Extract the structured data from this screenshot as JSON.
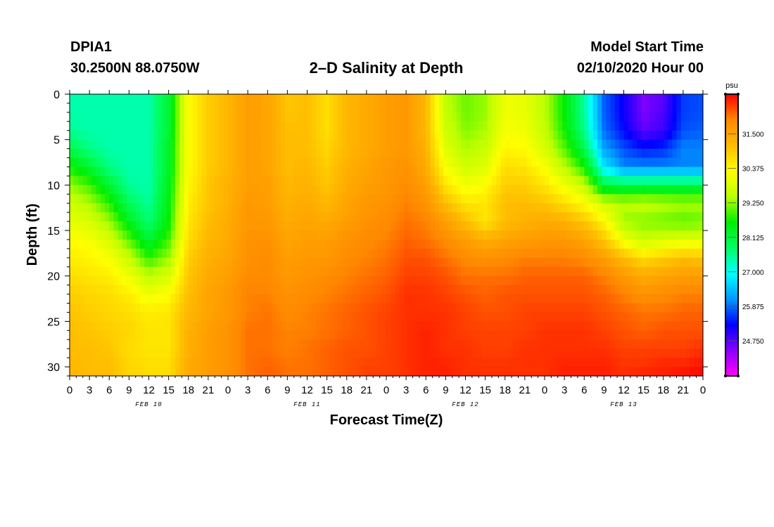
{
  "header": {
    "station": "DPIA1",
    "coords": "30.2500N 88.0750W",
    "title": "2–D Salinity at Depth",
    "model_start_label": "Model Start Time",
    "model_start_date": "02/10/2020 Hour 00"
  },
  "chart_data": {
    "type": "heatmap",
    "title": "2–D Salinity at Depth",
    "xlabel": "Forecast Time(Z)",
    "ylabel": "Depth (ft)",
    "x_ticks": [
      "0",
      "3",
      "6",
      "9",
      "12",
      "15",
      "18",
      "21",
      "0",
      "3",
      "6",
      "9",
      "12",
      "15",
      "18",
      "21",
      "0",
      "3",
      "6",
      "9",
      "12",
      "15",
      "18",
      "21",
      "0",
      "3",
      "6",
      "9",
      "12",
      "15",
      "18",
      "21",
      "0"
    ],
    "x_hours": [
      0,
      3,
      6,
      9,
      12,
      15,
      18,
      21,
      24,
      27,
      30,
      33,
      36,
      39,
      42,
      45,
      48,
      51,
      54,
      57,
      60,
      63,
      66,
      69,
      72,
      75,
      78,
      81,
      84,
      87,
      90,
      93,
      96
    ],
    "xlim": [
      0,
      96
    ],
    "day_labels": [
      {
        "label": "FEB 10",
        "hour": 12
      },
      {
        "label": "FEB 11",
        "hour": 36
      },
      {
        "label": "FEB 12",
        "hour": 60
      },
      {
        "label": "FEB 13",
        "hour": 84
      }
    ],
    "y_ticks": [
      "0",
      "5",
      "10",
      "15",
      "20",
      "25",
      "30"
    ],
    "y_values": [
      0,
      5,
      10,
      15,
      20,
      25,
      30
    ],
    "ylim": [
      0,
      31
    ],
    "y_inverted": true,
    "colorbar": {
      "unit": "psu",
      "ticks": [
        "24.750",
        "25.875",
        "27.000",
        "28.125",
        "29.250",
        "30.375",
        "31.500"
      ],
      "tick_values": [
        24.75,
        25.875,
        27.0,
        28.125,
        29.25,
        30.375,
        31.5
      ],
      "range": [
        23.6,
        32.8
      ],
      "colors": [
        "#ff00ff",
        "#8800ff",
        "#0000ff",
        "#0099ff",
        "#00ffff",
        "#00ff66",
        "#00ee00",
        "#bbff00",
        "#ffff00",
        "#ffbb00",
        "#ff8800",
        "#ff0000"
      ]
    },
    "x_hours_grid": [
      0,
      3,
      6,
      9,
      12,
      15,
      18,
      21,
      24,
      27,
      30,
      33,
      36,
      39,
      42,
      45,
      48,
      51,
      54,
      57,
      60,
      63,
      66,
      69,
      72,
      75,
      78,
      81,
      84,
      87,
      90,
      93,
      96
    ],
    "depth_grid": [
      0,
      2,
      4,
      6,
      8,
      10,
      12,
      14,
      16,
      18,
      20,
      22,
      24,
      26,
      28,
      30,
      31
    ],
    "values": [
      [
        27.4,
        27.4,
        27.4,
        27.4,
        27.4,
        28.2,
        30.3,
        30.9,
        31.2,
        31.6,
        31.5,
        31.0,
        31.1,
        30.7,
        31.2,
        31.4,
        31.6,
        31.7,
        31.2,
        29.5,
        29.1,
        29.3,
        30.1,
        30.0,
        29.5,
        28.6,
        27.5,
        25.8,
        25.2,
        24.5,
        24.7,
        25.6,
        25.7
      ],
      [
        27.4,
        27.4,
        27.4,
        27.4,
        27.4,
        28.2,
        30.3,
        30.9,
        31.2,
        31.6,
        31.5,
        31.0,
        31.1,
        30.7,
        31.2,
        31.4,
        31.6,
        31.7,
        31.2,
        29.6,
        29.1,
        29.3,
        30.1,
        30.0,
        29.5,
        28.6,
        27.5,
        25.8,
        25.2,
        24.5,
        24.8,
        25.6,
        25.7
      ],
      [
        27.5,
        27.4,
        27.4,
        27.4,
        27.4,
        28.2,
        30.3,
        30.9,
        31.2,
        31.6,
        31.5,
        31.1,
        31.1,
        30.7,
        31.2,
        31.4,
        31.6,
        31.7,
        31.2,
        29.7,
        29.2,
        29.4,
        30.2,
        30.1,
        29.6,
        28.7,
        27.6,
        25.9,
        25.3,
        24.7,
        24.9,
        25.7,
        25.8
      ],
      [
        28.0,
        27.6,
        27.4,
        27.4,
        27.4,
        28.3,
        30.3,
        30.9,
        31.2,
        31.6,
        31.5,
        31.1,
        31.1,
        30.8,
        31.2,
        31.4,
        31.6,
        31.7,
        31.3,
        29.9,
        29.4,
        29.6,
        30.4,
        30.3,
        29.8,
        29.0,
        28.0,
        26.2,
        25.7,
        25.4,
        25.5,
        26.0,
        26.0
      ],
      [
        28.7,
        28.2,
        27.6,
        27.4,
        27.4,
        28.3,
        30.3,
        30.9,
        31.2,
        31.6,
        31.5,
        31.1,
        31.2,
        30.9,
        31.3,
        31.5,
        31.7,
        31.8,
        31.4,
        30.2,
        29.7,
        29.9,
        30.7,
        30.6,
        30.2,
        29.5,
        28.7,
        26.8,
        26.0,
        26.0,
        26.0,
        26.0,
        26.0
      ],
      [
        29.3,
        28.9,
        28.2,
        27.5,
        27.4,
        28.4,
        30.4,
        31.0,
        31.3,
        31.6,
        31.6,
        31.2,
        31.3,
        31.0,
        31.4,
        31.6,
        31.7,
        31.9,
        31.6,
        30.6,
        30.1,
        30.3,
        30.9,
        30.9,
        30.6,
        30.1,
        29.6,
        28.1,
        28.0,
        28.0,
        28.0,
        28.0,
        28.0
      ],
      [
        29.7,
        29.4,
        28.8,
        27.9,
        27.5,
        28.5,
        30.5,
        31.0,
        31.3,
        31.7,
        31.6,
        31.3,
        31.4,
        31.2,
        31.5,
        31.7,
        31.8,
        32.0,
        31.8,
        31.1,
        30.6,
        30.6,
        31.1,
        31.1,
        31.0,
        30.7,
        30.3,
        29.7,
        29.5,
        29.6,
        29.5,
        29.4,
        29.4
      ],
      [
        30.0,
        29.8,
        29.3,
        28.4,
        27.7,
        28.6,
        30.6,
        31.1,
        31.4,
        31.7,
        31.7,
        31.4,
        31.5,
        31.4,
        31.6,
        31.8,
        31.9,
        32.1,
        32.0,
        31.6,
        31.1,
        30.6,
        31.1,
        31.3,
        31.4,
        31.3,
        31.0,
        30.4,
        29.3,
        29.2,
        29.1,
        29.0,
        29.1
      ],
      [
        30.3,
        30.2,
        29.8,
        29.0,
        28.2,
        28.9,
        30.7,
        31.2,
        31.4,
        31.8,
        31.8,
        31.5,
        31.6,
        31.6,
        31.8,
        31.9,
        32.0,
        32.2,
        32.1,
        31.9,
        31.6,
        31.3,
        31.5,
        31.6,
        31.7,
        31.7,
        31.5,
        31.0,
        30.1,
        29.6,
        29.8,
        29.9,
        29.9
      ],
      [
        30.5,
        30.4,
        30.2,
        29.6,
        28.8,
        29.3,
        30.9,
        31.3,
        31.5,
        31.8,
        31.9,
        31.6,
        31.7,
        31.7,
        31.9,
        32.0,
        32.1,
        32.3,
        32.3,
        32.1,
        31.9,
        31.8,
        31.9,
        32.0,
        32.0,
        32.0,
        31.9,
        31.6,
        31.1,
        30.7,
        30.9,
        31.1,
        31.0
      ],
      [
        30.7,
        30.6,
        30.5,
        30.1,
        29.5,
        29.8,
        31.0,
        31.4,
        31.6,
        31.9,
        31.9,
        31.7,
        31.8,
        31.9,
        32.0,
        32.1,
        32.2,
        32.4,
        32.4,
        32.3,
        32.1,
        32.1,
        32.1,
        32.2,
        32.2,
        32.2,
        32.2,
        32.0,
        31.7,
        31.4,
        31.5,
        31.6,
        31.6
      ],
      [
        30.9,
        30.8,
        30.7,
        30.5,
        30.1,
        30.3,
        31.1,
        31.5,
        31.7,
        32.0,
        32.0,
        31.8,
        31.9,
        32.0,
        32.1,
        32.2,
        32.3,
        32.5,
        32.5,
        32.4,
        32.3,
        32.2,
        32.3,
        32.3,
        32.3,
        32.3,
        32.3,
        32.2,
        32.0,
        31.8,
        31.9,
        32.0,
        32.0
      ],
      [
        31.0,
        30.9,
        30.8,
        30.7,
        30.5,
        30.6,
        31.2,
        31.5,
        31.7,
        32.0,
        32.1,
        31.9,
        32.0,
        32.1,
        32.2,
        32.3,
        32.4,
        32.5,
        32.5,
        32.5,
        32.4,
        32.3,
        32.3,
        32.4,
        32.4,
        32.4,
        32.4,
        32.3,
        32.2,
        32.1,
        32.1,
        32.2,
        32.2
      ],
      [
        31.1,
        31.0,
        30.9,
        30.8,
        30.6,
        30.6,
        31.3,
        31.6,
        31.8,
        32.1,
        32.1,
        32.0,
        32.0,
        32.1,
        32.2,
        32.3,
        32.4,
        32.5,
        32.6,
        32.5,
        32.4,
        32.4,
        32.4,
        32.4,
        32.5,
        32.5,
        32.5,
        32.4,
        32.3,
        32.2,
        32.3,
        32.3,
        32.3
      ],
      [
        31.1,
        31.1,
        31.0,
        30.7,
        30.6,
        30.6,
        31.3,
        31.6,
        31.8,
        32.1,
        32.1,
        32.0,
        32.1,
        32.2,
        32.3,
        32.3,
        32.4,
        32.5,
        32.6,
        32.5,
        32.5,
        32.4,
        32.4,
        32.5,
        32.5,
        32.5,
        32.5,
        32.5,
        32.4,
        32.4,
        32.4,
        32.4,
        32.5
      ],
      [
        31.2,
        31.1,
        31.1,
        30.8,
        30.7,
        30.7,
        31.4,
        31.6,
        31.8,
        32.1,
        32.2,
        32.1,
        32.1,
        32.2,
        32.3,
        32.4,
        32.4,
        32.5,
        32.6,
        32.6,
        32.5,
        32.5,
        32.5,
        32.5,
        32.5,
        32.6,
        32.6,
        32.6,
        32.5,
        32.5,
        32.6,
        32.6,
        32.7
      ],
      [
        31.2,
        31.1,
        31.1,
        30.8,
        30.7,
        30.7,
        31.4,
        31.6,
        31.8,
        32.1,
        32.2,
        32.1,
        32.1,
        32.2,
        32.3,
        32.4,
        32.4,
        32.5,
        32.6,
        32.6,
        32.5,
        32.5,
        32.5,
        32.5,
        32.5,
        32.6,
        32.6,
        32.6,
        32.5,
        32.6,
        32.6,
        32.7,
        32.8
      ]
    ]
  }
}
